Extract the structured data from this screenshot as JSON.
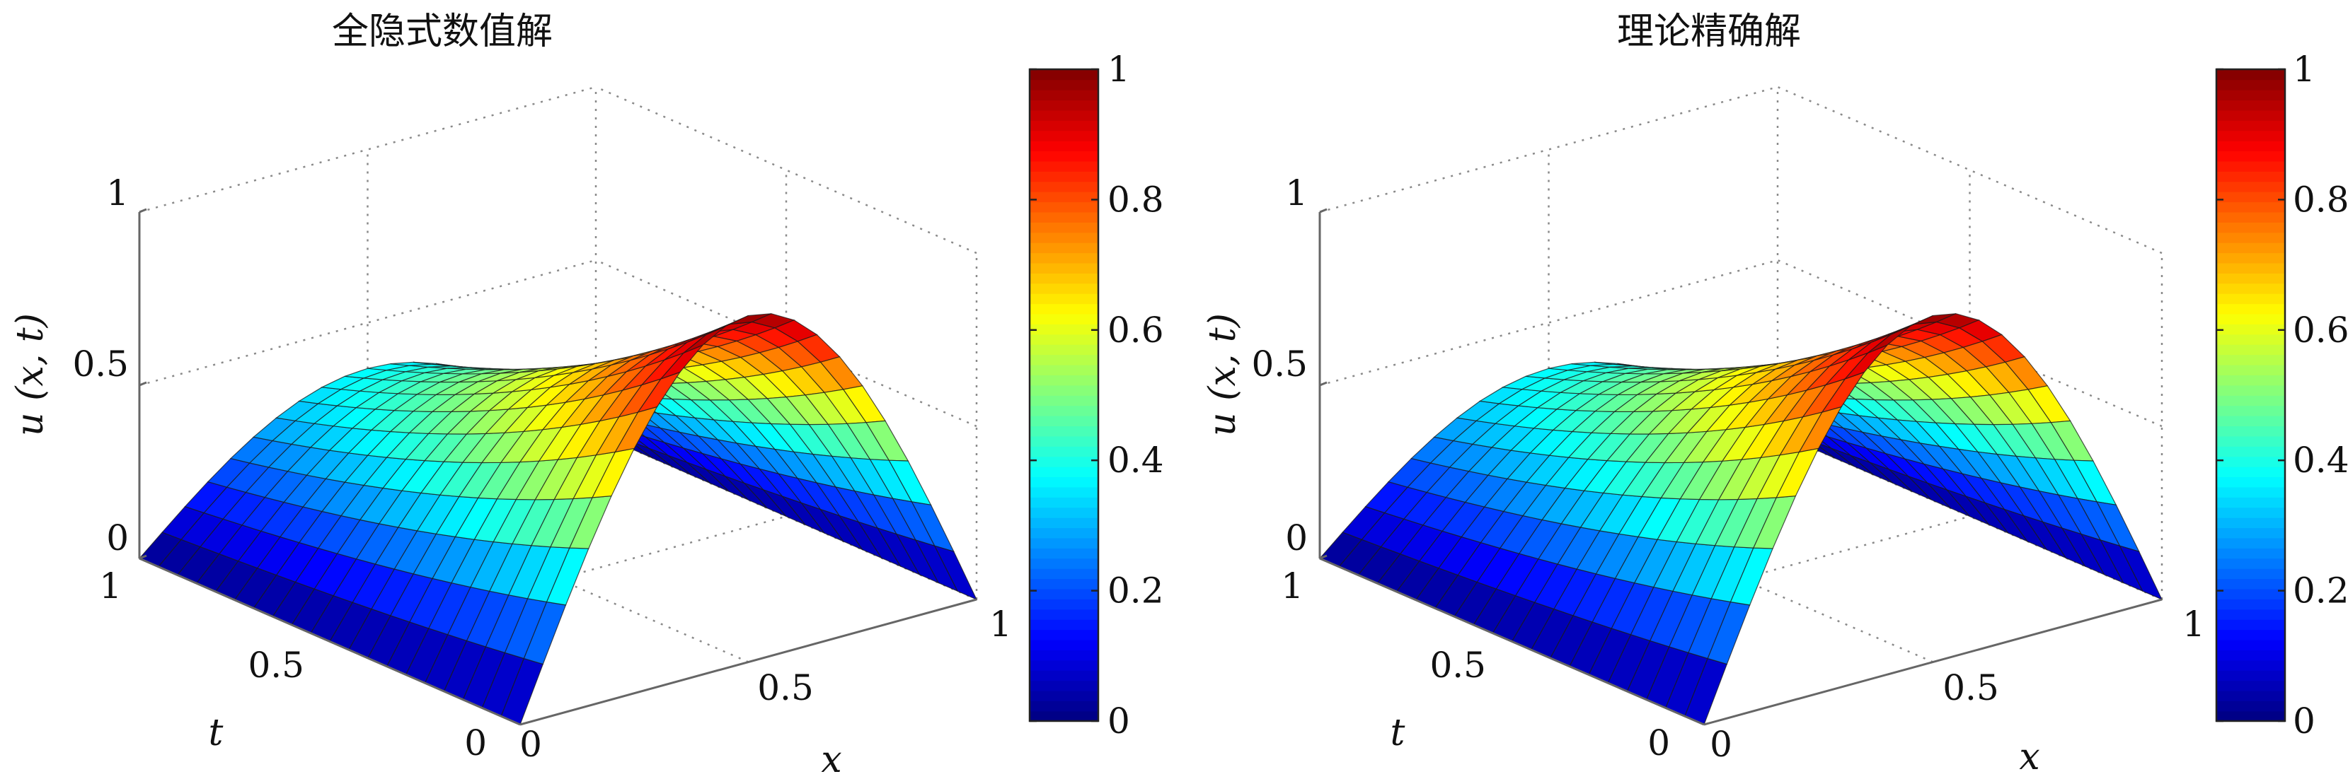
{
  "chart_data": [
    {
      "type": "surface",
      "title": "全隐式数值解",
      "xlabel": "x",
      "ylabel": "t",
      "zlabel": "u (x, t)",
      "xlim": [
        0,
        1
      ],
      "ylim": [
        0,
        1
      ],
      "zlim": [
        0,
        1
      ],
      "x_ticks": [
        "0",
        "0.5",
        "1"
      ],
      "t_ticks": [
        "0",
        "0.5",
        "1"
      ],
      "z_ticks": [
        "0",
        "0.5",
        "1"
      ],
      "colorbar": {
        "range": [
          0,
          1
        ],
        "ticks": [
          "0",
          "0.2",
          "0.4",
          "0.6",
          "0.8",
          "1"
        ],
        "colormap": "jet"
      },
      "grid_x": [
        0,
        0.05,
        0.1,
        0.15,
        0.2,
        0.25,
        0.3,
        0.35,
        0.4,
        0.45,
        0.5,
        0.55,
        0.6,
        0.65,
        0.7,
        0.75,
        0.8,
        0.85,
        0.9,
        0.95,
        1
      ],
      "grid_t": [
        0,
        0.05,
        0.1,
        0.15,
        0.2,
        0.25,
        0.3,
        0.35,
        0.4,
        0.45,
        0.5,
        0.55,
        0.6,
        0.65,
        0.7,
        0.75,
        0.8,
        0.85,
        0.9,
        0.95,
        1
      ],
      "z_formula": "u(x,t) = exp(-t) * sin(pi * x)",
      "z_max": 1,
      "grid": true
    },
    {
      "type": "surface",
      "title": "理论精确解",
      "xlabel": "x",
      "ylabel": "t",
      "zlabel": "u (x, t)",
      "xlim": [
        0,
        1
      ],
      "ylim": [
        0,
        1
      ],
      "zlim": [
        0,
        1
      ],
      "x_ticks": [
        "0",
        "0.5",
        "1"
      ],
      "t_ticks": [
        "0",
        "0.5",
        "1"
      ],
      "z_ticks": [
        "0",
        "0.5",
        "1"
      ],
      "colorbar": {
        "range": [
          0,
          1
        ],
        "ticks": [
          "0",
          "0.2",
          "0.4",
          "0.6",
          "0.8",
          "1"
        ],
        "colormap": "jet"
      },
      "grid_x": [
        0,
        0.05,
        0.1,
        0.15,
        0.2,
        0.25,
        0.3,
        0.35,
        0.4,
        0.45,
        0.5,
        0.55,
        0.6,
        0.65,
        0.7,
        0.75,
        0.8,
        0.85,
        0.9,
        0.95,
        1
      ],
      "grid_t": [
        0,
        0.05,
        0.1,
        0.15,
        0.2,
        0.25,
        0.3,
        0.35,
        0.4,
        0.45,
        0.5,
        0.55,
        0.6,
        0.65,
        0.7,
        0.75,
        0.8,
        0.85,
        0.9,
        0.95,
        1
      ],
      "z_formula": "u(x,t) = exp(-t) * sin(pi * x)",
      "z_max": 1,
      "grid": true
    }
  ]
}
